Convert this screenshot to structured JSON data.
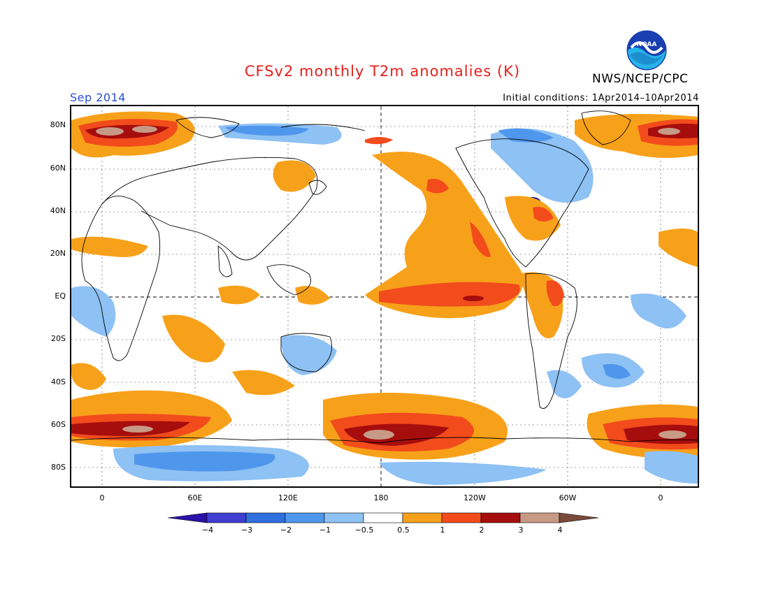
{
  "title": "CFSv2 monthly T2m anomalies (K)",
  "agency": "NWS/NCEP/CPC",
  "logo_text": "NOAA",
  "month": "Sep 2014",
  "initial_conditions": "Initial conditions: 1Apr2014–10Apr2014",
  "lat_labels": [
    "80N",
    "60N",
    "40N",
    "20N",
    "EQ",
    "20S",
    "40S",
    "60S",
    "80S"
  ],
  "lon_labels": [
    "0",
    "60E",
    "120E",
    "180",
    "120W",
    "60W",
    "0"
  ],
  "colorbar": {
    "labels": [
      "−4",
      "−3",
      "−2",
      "−1",
      "−0.5",
      "0.5",
      "1",
      "2",
      "3",
      "4"
    ],
    "colors": [
      "#2a12a8",
      "#3f3fd0",
      "#2f6fde",
      "#4f97ec",
      "#8ec1f4",
      "#ffffff",
      "#f7a11a",
      "#f24b1c",
      "#a60d0d",
      "#c79a86",
      "#7a4a3a"
    ]
  }
}
